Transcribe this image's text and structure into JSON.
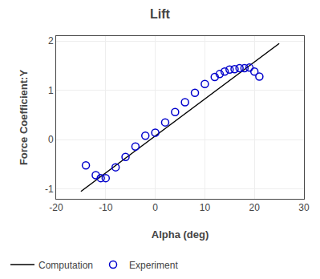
{
  "chart_data": {
    "type": "scatter",
    "title": "Lift",
    "xlabel": "Alpha (deg)",
    "ylabel": "Force Coefficient:Y",
    "xlim": [
      -20,
      30
    ],
    "ylim": [
      -1.2,
      2.1
    ],
    "xticks": [
      -20,
      -10,
      0,
      10,
      20,
      30
    ],
    "yticks": [
      -1,
      0,
      1,
      2
    ],
    "grid": true,
    "legend": "bottom",
    "series": [
      {
        "name": "Computation",
        "type": "line",
        "color": "#000000",
        "line_style": "solid",
        "x": [
          -15,
          25
        ],
        "values": [
          -1.05,
          1.95
        ]
      },
      {
        "name": "Experiment",
        "type": "scatter",
        "color": "#0000cc",
        "marker": "circle-open",
        "x": [
          -14,
          -12,
          -11,
          -10,
          -8,
          -6,
          -4,
          -2,
          0,
          2,
          4,
          6,
          8,
          10,
          12,
          13,
          14,
          15,
          16,
          17,
          18,
          19,
          20,
          21
        ],
        "values": [
          -0.52,
          -0.72,
          -0.78,
          -0.78,
          -0.56,
          -0.35,
          -0.14,
          0.08,
          0.14,
          0.35,
          0.56,
          0.76,
          0.95,
          1.13,
          1.27,
          1.33,
          1.38,
          1.42,
          1.43,
          1.45,
          1.45,
          1.46,
          1.38,
          1.28
        ]
      }
    ]
  }
}
